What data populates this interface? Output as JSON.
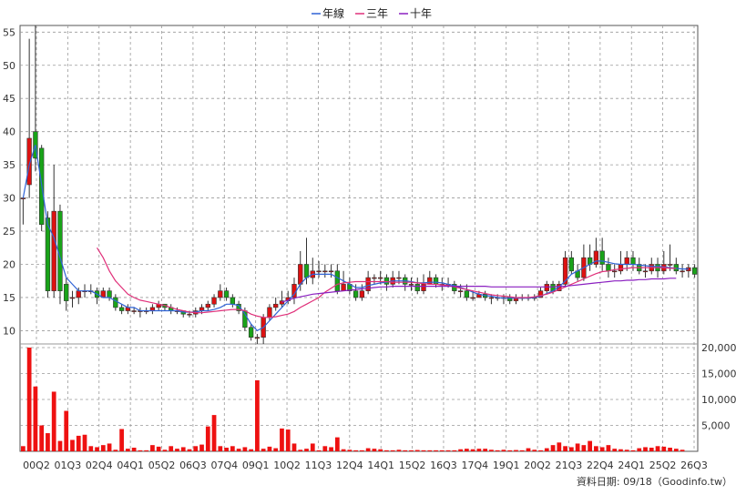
{
  "chart_data": {
    "type": "candlestick",
    "legend": {
      "position": "top-center",
      "entries": [
        {
          "name": "年線",
          "color": "#2f63d6"
        },
        {
          "name": "三年",
          "color": "#e0307a"
        },
        {
          "name": "十年",
          "color": "#8a1fc0"
        }
      ]
    },
    "y_price": {
      "min": 8,
      "max": 56,
      "ticks": [
        10,
        15,
        20,
        25,
        30,
        35,
        40,
        45,
        50,
        55
      ]
    },
    "y_volume": {
      "min": 0,
      "max": 20000,
      "tick_labels": [
        "5,000",
        "10,000",
        "15,000",
        "20,000"
      ],
      "tick_values": [
        5000,
        10000,
        15000,
        20000
      ]
    },
    "x_ticks": [
      "00Q2",
      "01Q3",
      "02Q4",
      "04Q1",
      "05Q2",
      "06Q3",
      "07Q4",
      "09Q1",
      "10Q2",
      "11Q3",
      "12Q4",
      "14Q1",
      "15Q2",
      "16Q3",
      "17Q4",
      "19Q1",
      "20Q2",
      "21Q3",
      "22Q4",
      "24Q1",
      "25Q2",
      "26Q3"
    ],
    "colors": {
      "up": "#dd1111",
      "down": "#19a319",
      "volume": "#ee1111",
      "grid": "#999999"
    },
    "candles": [
      [
        30,
        30,
        30,
        26
      ],
      [
        32,
        39,
        54,
        30
      ],
      [
        40,
        36,
        56,
        34
      ],
      [
        37.5,
        26,
        38,
        25
      ],
      [
        27,
        16,
        28,
        15
      ],
      [
        16,
        28,
        35,
        15
      ],
      [
        28,
        16,
        29,
        14
      ],
      [
        17,
        14.5,
        18,
        13
      ],
      [
        15,
        15,
        16,
        13.5
      ],
      [
        15,
        16,
        16.5,
        14
      ],
      [
        16,
        16,
        17,
        15
      ],
      [
        16,
        16,
        17,
        15.5
      ],
      [
        16,
        15,
        16.5,
        14
      ],
      [
        15,
        16,
        16.5,
        15
      ],
      [
        16,
        15,
        16.5,
        14.5
      ],
      [
        15,
        13.5,
        15.5,
        13
      ],
      [
        13.5,
        13,
        14,
        12.5
      ],
      [
        13,
        13.5,
        14,
        12.5
      ],
      [
        13,
        13,
        13.5,
        12.5
      ],
      [
        13,
        13,
        13.5,
        12
      ],
      [
        13,
        13,
        13.5,
        12.5
      ],
      [
        13,
        13.5,
        14,
        12.5
      ],
      [
        13.5,
        14,
        14.5,
        13
      ],
      [
        14,
        13.5,
        14,
        13
      ],
      [
        13.5,
        13,
        14,
        12.5
      ],
      [
        13,
        13,
        13.5,
        12.5
      ],
      [
        13,
        12.5,
        13,
        12
      ],
      [
        12.5,
        12.5,
        13,
        12
      ],
      [
        12.5,
        13,
        13.5,
        12
      ],
      [
        13,
        13.5,
        14,
        12.5
      ],
      [
        13.5,
        14,
        14.5,
        13
      ],
      [
        14,
        15,
        15.5,
        13.5
      ],
      [
        15,
        16,
        17,
        14.5
      ],
      [
        16,
        15,
        16.5,
        14.5
      ],
      [
        15,
        14,
        15.5,
        13.5
      ],
      [
        14,
        13,
        14.5,
        12.5
      ],
      [
        13,
        10.5,
        13.5,
        10
      ],
      [
        10.5,
        9,
        11,
        8.5
      ],
      [
        9,
        9,
        9.5,
        8
      ],
      [
        9,
        12,
        12.5,
        8
      ],
      [
        12,
        13.5,
        14,
        11.5
      ],
      [
        13.5,
        14,
        15,
        13
      ],
      [
        14,
        14.5,
        16,
        13.5
      ],
      [
        14.5,
        15,
        16,
        14
      ],
      [
        15,
        17,
        18,
        14
      ],
      [
        17,
        20,
        22,
        16
      ],
      [
        20,
        18,
        24,
        17
      ],
      [
        18,
        19,
        21,
        17
      ],
      [
        19,
        19,
        20.5,
        18
      ],
      [
        19,
        19,
        20,
        18
      ],
      [
        19,
        19,
        20,
        18
      ],
      [
        19,
        16,
        20,
        15.5
      ],
      [
        16,
        17,
        19,
        16
      ],
      [
        17,
        16,
        18,
        15.5
      ],
      [
        16,
        15,
        17,
        14.5
      ],
      [
        15,
        16,
        17,
        14.5
      ],
      [
        16,
        18,
        19,
        15.5
      ],
      [
        18,
        18,
        18.5,
        17
      ],
      [
        18,
        18,
        19,
        17
      ],
      [
        18,
        17,
        18.5,
        16
      ],
      [
        17,
        18,
        19,
        16.5
      ],
      [
        18,
        18,
        19,
        17
      ],
      [
        18,
        17,
        18.5,
        16
      ],
      [
        17,
        17,
        18,
        16
      ],
      [
        17,
        16,
        18,
        15.5
      ],
      [
        16,
        17,
        18.5,
        15.5
      ],
      [
        17,
        18,
        19,
        17
      ],
      [
        18,
        17,
        18.5,
        16.5
      ],
      [
        17,
        17,
        18,
        16
      ],
      [
        17,
        17,
        18,
        16.5
      ],
      [
        17,
        16,
        17.5,
        15.5
      ],
      [
        16,
        16,
        17,
        15
      ],
      [
        16,
        15,
        17,
        14.5
      ],
      [
        15,
        15,
        16,
        14.5
      ],
      [
        15,
        15.5,
        16,
        15
      ],
      [
        15.5,
        15,
        16,
        14.5
      ],
      [
        15,
        15,
        15.5,
        14
      ],
      [
        15,
        15,
        15.5,
        14.5
      ],
      [
        15,
        15,
        15.5,
        14
      ],
      [
        15,
        14.5,
        15.5,
        14
      ],
      [
        14.5,
        15,
        15.5,
        14
      ],
      [
        15,
        15,
        15.5,
        14.5
      ],
      [
        15,
        15,
        15.5,
        14.5
      ],
      [
        15,
        15,
        15.5,
        14.5
      ],
      [
        15,
        16,
        16.5,
        15
      ],
      [
        16,
        17,
        17.5,
        15.5
      ],
      [
        17,
        16,
        17.5,
        15.5
      ],
      [
        16,
        17,
        17.5,
        16
      ],
      [
        17,
        21,
        22,
        16.5
      ],
      [
        21,
        19,
        22,
        18.5
      ],
      [
        19,
        18,
        20,
        17.5
      ],
      [
        18,
        21,
        23,
        17.5
      ],
      [
        21,
        20,
        23,
        19
      ],
      [
        20,
        22,
        24,
        19.5
      ],
      [
        22,
        20,
        24,
        19
      ],
      [
        20,
        19,
        21,
        18
      ],
      [
        19,
        19,
        20,
        18
      ],
      [
        19,
        20,
        22,
        18.5
      ],
      [
        20,
        21,
        22,
        19
      ],
      [
        21,
        20,
        22,
        19
      ],
      [
        20,
        19,
        21,
        18.5
      ],
      [
        19,
        19,
        20,
        18
      ],
      [
        19,
        20,
        21,
        18.5
      ],
      [
        20,
        19,
        21,
        18
      ],
      [
        19,
        20,
        22,
        18.5
      ],
      [
        20,
        20,
        23,
        19
      ],
      [
        20,
        19,
        21,
        18.5
      ],
      [
        19,
        19,
        20,
        18
      ],
      [
        19,
        19.5,
        20,
        18
      ],
      [
        19.5,
        18.5,
        20,
        18
      ]
    ],
    "volume": [
      1000,
      20000,
      12500,
      5000,
      3500,
      11500,
      2000,
      7800,
      2200,
      3000,
      3200,
      1000,
      800,
      1200,
      1500,
      300,
      4300,
      500,
      700,
      200,
      200,
      1200,
      900,
      300,
      1000,
      500,
      800,
      400,
      1000,
      1300,
      4800,
      7000,
      1000,
      700,
      1000,
      500,
      800,
      400,
      13700,
      500,
      900,
      600,
      4400,
      4200,
      1500,
      300,
      500,
      1500,
      200,
      1000,
      800,
      2700,
      400,
      300,
      200,
      200,
      600,
      500,
      400,
      200,
      200,
      300,
      200,
      200,
      250,
      200,
      200,
      200,
      200,
      200,
      200,
      400,
      500,
      400,
      500,
      500,
      300,
      200,
      300,
      200,
      250,
      200,
      600,
      300,
      200,
      600,
      1200,
      1700,
      1000,
      800,
      1500,
      1200,
      2000,
      1000,
      800,
      1200,
      500,
      400,
      300,
      200,
      600,
      800,
      700,
      1000,
      900,
      700,
      500,
      300
    ],
    "annual_line": [
      30,
      35,
      38,
      32,
      26,
      24,
      21,
      18,
      17,
      16,
      16,
      16,
      15.5,
      15,
      15,
      14.5,
      14,
      13.5,
      13.5,
      13,
      13,
      13,
      13,
      13,
      13,
      13,
      12.8,
      12.8,
      12.8,
      13,
      13,
      13.2,
      13.5,
      14,
      14,
      13.8,
      12.5,
      11,
      10,
      10.5,
      11.5,
      12.5,
      13.5,
      14.5,
      15.5,
      17,
      18,
      18.5,
      18.5,
      18.5,
      18.5,
      18,
      17.5,
      17,
      16.5,
      16.5,
      16.8,
      17,
      17.2,
      17.3,
      17.5,
      17.5,
      17.5,
      17.4,
      17.2,
      17.2,
      17.3,
      17.3,
      17.2,
      17,
      16.8,
      16.5,
      16.2,
      15.8,
      15.5,
      15.3,
      15.2,
      15,
      14.9,
      14.9,
      14.9,
      14.9,
      14.9,
      15,
      15.2,
      15.6,
      16,
      16.6,
      17.5,
      18.5,
      19,
      19.5,
      20,
      20.5,
      20.5,
      20.3,
      20.1,
      20,
      20,
      20,
      19.9,
      19.8,
      19.7,
      19.7,
      19.6,
      19.5,
      19.4,
      19.3,
      19.3
    ],
    "three_year_line": [
      null,
      null,
      null,
      null,
      null,
      null,
      null,
      null,
      null,
      null,
      null,
      null,
      22.5,
      21,
      19,
      17.5,
      16.5,
      15.5,
      15,
      14.6,
      14.4,
      14.2,
      14,
      13.8,
      13.5,
      13.2,
      13,
      12.8,
      12.7,
      12.7,
      12.8,
      12.9,
      13,
      13.1,
      13.2,
      13.2,
      13,
      12.5,
      12.2,
      12,
      12,
      12.1,
      12.3,
      12.5,
      12.9,
      13.5,
      14,
      14.5,
      15,
      15.8,
      16.4,
      17,
      17.2,
      17.3,
      17.4,
      17.4,
      17.4,
      17.4,
      17.4,
      17.4,
      17.3,
      17.3,
      17.3,
      17.3,
      17.2,
      17.1,
      17,
      17,
      16.9,
      16.8,
      16.6,
      16.4,
      16.2,
      16,
      15.8,
      15.6,
      15.4,
      15.3,
      15.2,
      15.1,
      15,
      15,
      15,
      15.1,
      15.3,
      15.5,
      15.8,
      16.2,
      16.6,
      17,
      17.4,
      17.8,
      18.2,
      18.6,
      18.9,
      19,
      19.2,
      19.3,
      19.4,
      19.5,
      19.5,
      19.5,
      19.5,
      19.5,
      19.5,
      19.4,
      19.4
    ],
    "ten_year_line": [
      null,
      null,
      null,
      null,
      null,
      null,
      null,
      null,
      null,
      null,
      null,
      null,
      null,
      null,
      null,
      null,
      null,
      null,
      null,
      null,
      null,
      null,
      null,
      null,
      null,
      null,
      null,
      null,
      null,
      null,
      null,
      null,
      null,
      null,
      null,
      null,
      null,
      null,
      null,
      null,
      null,
      null,
      14.3,
      14.6,
      14.9,
      15.1,
      15.3,
      15.5,
      15.6,
      15.7,
      15.8,
      15.9,
      16,
      16.1,
      16.2,
      16.3,
      16.4,
      16.5,
      16.6,
      16.6,
      16.7,
      16.7,
      16.7,
      16.7,
      16.7,
      16.7,
      16.7,
      16.7,
      16.7,
      16.7,
      16.7,
      16.7,
      16.7,
      16.7,
      16.7,
      16.7,
      16.6,
      16.6,
      16.6,
      16.6,
      16.6,
      16.6,
      16.6,
      16.6,
      16.6,
      16.6,
      16.6,
      16.7,
      16.7,
      16.8,
      16.9,
      17,
      17.1,
      17.2,
      17.3,
      17.4,
      17.5,
      17.5,
      17.6,
      17.6,
      17.7,
      17.7,
      17.8,
      17.8,
      17.8,
      17.9,
      17.9
    ],
    "footer_text": "資料日期: 09/18（Goodinfo.tw）"
  }
}
